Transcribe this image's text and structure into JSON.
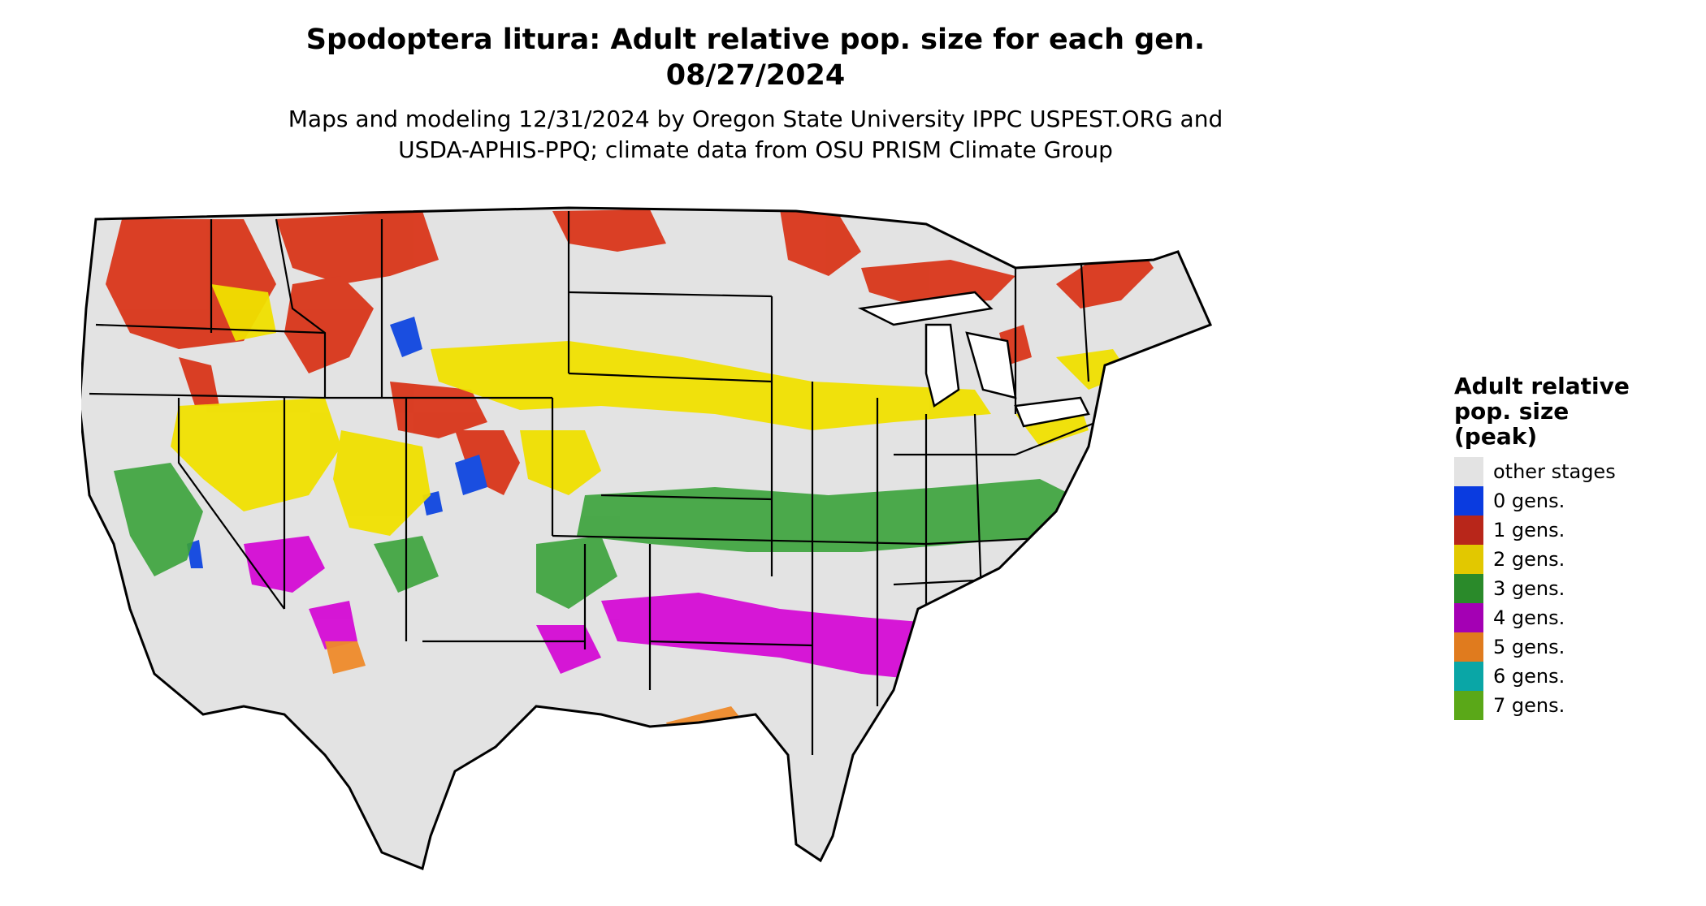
{
  "header": {
    "title_line1": "Spodoptera litura: Adult relative pop. size for each gen.",
    "title_line2": "08/27/2024",
    "subtitle_line1": "Maps and modeling 12/31/2024 by Oregon State University IPPC USPEST.ORG and",
    "subtitle_line2": "USDA-APHIS-PPQ; climate data from OSU PRISM Climate Group"
  },
  "legend": {
    "title_line1": "Adult relative",
    "title_line2": "pop. size",
    "title_line3": "(peak)",
    "items": [
      {
        "label": "other stages",
        "color": "#e3e3e3"
      },
      {
        "label": "0 gens.",
        "color": "#0a3be0"
      },
      {
        "label": "1 gens.",
        "color": "#b8261a"
      },
      {
        "label": "2 gens.",
        "color": "#e2c800"
      },
      {
        "label": "3 gens.",
        "color": "#2a8a2a"
      },
      {
        "label": "4 gens.",
        "color": "#a400b4"
      },
      {
        "label": "5 gens.",
        "color": "#e07b1e"
      },
      {
        "label": "6 gens.",
        "color": "#0aa6a6"
      },
      {
        "label": "7 gens.",
        "color": "#5aa818"
      }
    ]
  },
  "map_colors": {
    "land": "#e3e3e3",
    "border": "#000000",
    "zone_1": "#d9361a",
    "zone_2": "#f0e000",
    "zone_3": "#3aa23a",
    "zone_4": "#d400d4",
    "zone_5": "#ee8a2a",
    "zone_6": "#18c8c8",
    "zone_0": "#1a4ee0"
  }
}
